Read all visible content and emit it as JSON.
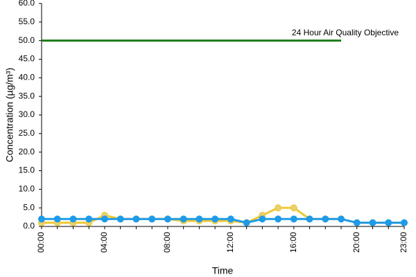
{
  "chart_data": {
    "type": "line",
    "x_label": "Time",
    "y_label": "Concentration (µg/m³)",
    "categories": [
      "00:00",
      null,
      null,
      null,
      "04:00",
      null,
      null,
      null,
      "08:00",
      null,
      null,
      null,
      "12:00",
      null,
      null,
      null,
      "16:00",
      null,
      null,
      null,
      "20:00",
      null,
      null,
      "23:00"
    ],
    "series": [
      {
        "color": "#f0c830",
        "marker_color": "#e8d070",
        "values": [
          1,
          1,
          1,
          1,
          3,
          2,
          2,
          2,
          2,
          1.5,
          1.5,
          1.5,
          1.5,
          1,
          3,
          5,
          5,
          2,
          2,
          2,
          1,
          1,
          1,
          1
        ]
      },
      {
        "color": "#1e9be8",
        "marker_color": "#1e9be8",
        "values": [
          2,
          2,
          2,
          2,
          2,
          2,
          2,
          2,
          2,
          2,
          2,
          2,
          2,
          1,
          2,
          2,
          2,
          2,
          2,
          2,
          1,
          1,
          1,
          1
        ]
      },
      {
        "name": "24 Hour Air Quality Objective",
        "color": "#1a7a1a",
        "markers": false,
        "values": [
          50,
          50,
          50,
          50,
          50,
          50,
          50,
          50,
          50,
          50,
          50,
          50,
          50,
          50,
          50,
          50,
          50,
          50,
          50,
          50,
          null,
          null,
          null,
          null
        ]
      }
    ],
    "ylim": [
      0,
      60
    ],
    "yticks": [
      {
        "value": 0,
        "label": "0.0"
      },
      {
        "value": 5,
        "label": "5.0"
      },
      {
        "value": 10,
        "label": "10.0"
      },
      {
        "value": 15,
        "label": "15.0"
      },
      {
        "value": 20,
        "label": "20.0"
      },
      {
        "value": 25,
        "label": "25.0"
      },
      {
        "value": 30,
        "label": "30.0"
      },
      {
        "value": 35,
        "label": "35.0"
      },
      {
        "value": 40,
        "label": "40.0"
      },
      {
        "value": 45,
        "label": "45.0"
      },
      {
        "value": 50,
        "label": "50.0"
      },
      {
        "value": 55,
        "label": "55.0"
      },
      {
        "value": 60,
        "label": "60.0"
      }
    ],
    "grid": false
  }
}
